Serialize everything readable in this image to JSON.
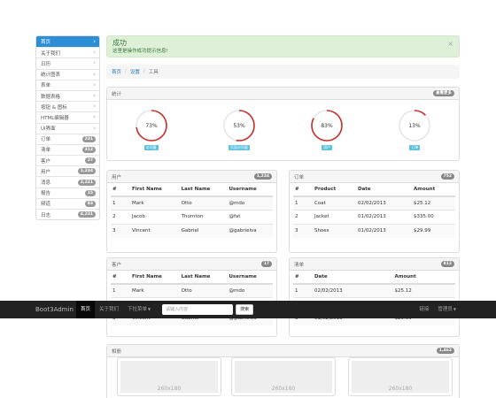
{
  "sidebar": {
    "items": [
      {
        "label": "首页",
        "active": true
      },
      {
        "label": "关于我们"
      },
      {
        "label": "日历"
      },
      {
        "label": "统计图表"
      },
      {
        "label": "表单"
      },
      {
        "label": "数据表格"
      },
      {
        "label": "按钮 & 图标"
      },
      {
        "label": "HTML编辑器"
      },
      {
        "label": "UI界面"
      },
      {
        "label": "订单",
        "badge": "231"
      },
      {
        "label": "清单",
        "badge": "312"
      },
      {
        "label": "客户",
        "badge": "27"
      },
      {
        "label": "用户",
        "badge": "1,234"
      },
      {
        "label": "消息",
        "badge": "2,221"
      },
      {
        "label": "报告",
        "badge": "15"
      },
      {
        "label": "频道",
        "badge": "83"
      },
      {
        "label": "日志",
        "badge": "4,231"
      }
    ]
  },
  "alert": {
    "title": "成功",
    "message": "这里是操作成功提示信息!",
    "close": "×"
  },
  "breadcrumb": {
    "home": "首页",
    "settings": "设置",
    "current": "工具",
    "sep": "/"
  },
  "stats_panel": {
    "title": "统计",
    "badge": "查看更多",
    "items": [
      {
        "value": "73%",
        "percent": 73,
        "label": "访问量"
      },
      {
        "value": "53%",
        "percent": 53,
        "label": "页面访问量"
      },
      {
        "value": "83%",
        "percent": 83,
        "label": "用户"
      },
      {
        "value": "13%",
        "percent": 13,
        "label": "订单"
      }
    ]
  },
  "users_panel": {
    "title": "用户",
    "badge": "1,234",
    "headers": [
      "#",
      "First Name",
      "Last Name",
      "Username"
    ],
    "rows": [
      [
        "1",
        "Mark",
        "Otto",
        "@mdo"
      ],
      [
        "2",
        "Jacob",
        "Thornton",
        "@fat"
      ],
      [
        "3",
        "Vincent",
        "Gabriel",
        "@gabrielva"
      ]
    ]
  },
  "orders_panel": {
    "title": "订单",
    "badge": "752",
    "headers": [
      "#",
      "Product",
      "Date",
      "Amount"
    ],
    "rows": [
      [
        "1",
        "Coat",
        "02/02/2013",
        "$25.12"
      ],
      [
        "2",
        "Jacket",
        "01/02/2013",
        "$335.00"
      ],
      [
        "3",
        "Shoes",
        "01/02/2013",
        "$29.99"
      ]
    ]
  },
  "customers_panel": {
    "title": "客户",
    "badge": "17",
    "headers": [
      "#",
      "First Name",
      "Last Name",
      "Username"
    ],
    "rows": [
      [
        "1",
        "Mark",
        "Otto",
        "@mdo"
      ],
      [
        "3",
        "Vincent",
        "Gabriel",
        "@gabrielva"
      ]
    ]
  },
  "list_panel": {
    "title": "清单",
    "badge": "812",
    "headers": [
      "#",
      "Date",
      "Amount"
    ],
    "rows": [
      [
        "1",
        "02/02/2013",
        "$25.12"
      ],
      [
        "3",
        "01/02/2013",
        "$29.99"
      ]
    ]
  },
  "navbar": {
    "brand": "Boot3Admin",
    "home": "首页",
    "about": "关于我们",
    "dropdown": "下拉菜单",
    "search_placeholder": "请输入内容",
    "search_button": "搜索",
    "link": "链接",
    "admin": "管理员"
  },
  "album_panel": {
    "title": "相册",
    "badge": "1,462",
    "thumb_label": "260x180"
  },
  "colors": {
    "primary": "#2c8fd6",
    "ring": "#c9302c",
    "ring_track": "#e6e6e6",
    "info": "#5bc0de",
    "navbar": "#222222"
  }
}
